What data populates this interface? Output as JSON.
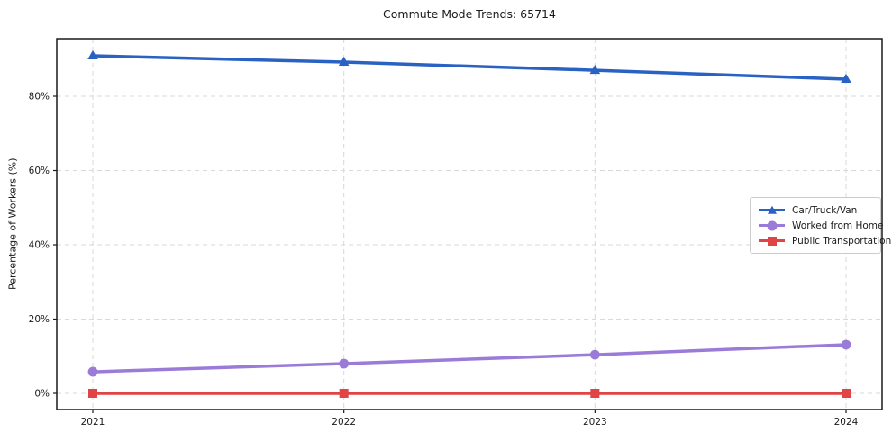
{
  "title": "Commute Mode Trends: 65714",
  "chart_data": {
    "type": "line",
    "title": "Commute Mode Trends: 65714",
    "xlabel": "",
    "ylabel": "Percentage of Workers (%)",
    "x": [
      "2021",
      "2022",
      "2023",
      "2024"
    ],
    "yticks": [
      "0%",
      "20%",
      "40%",
      "60%",
      "80%"
    ],
    "ytick_values": [
      0,
      20,
      40,
      60,
      80
    ],
    "ylim": [
      -4.5,
      95.5
    ],
    "grid": "dashed",
    "grid_color": "#d9d9d9",
    "axis_color": "#1a1a1a",
    "legend_position": "center-right",
    "series": [
      {
        "name": "Car/Truck/Van",
        "marker": "triangle",
        "color": "#2a62c4",
        "values": [
          90.9,
          89.2,
          87.0,
          84.6
        ]
      },
      {
        "name": "Worked from Home",
        "marker": "circle",
        "color": "#9b7bd8",
        "values": [
          5.8,
          8.0,
          10.4,
          13.1
        ]
      },
      {
        "name": "Public Transportation",
        "marker": "square",
        "color": "#e04444",
        "values": [
          0,
          0,
          0,
          0
        ]
      }
    ]
  }
}
